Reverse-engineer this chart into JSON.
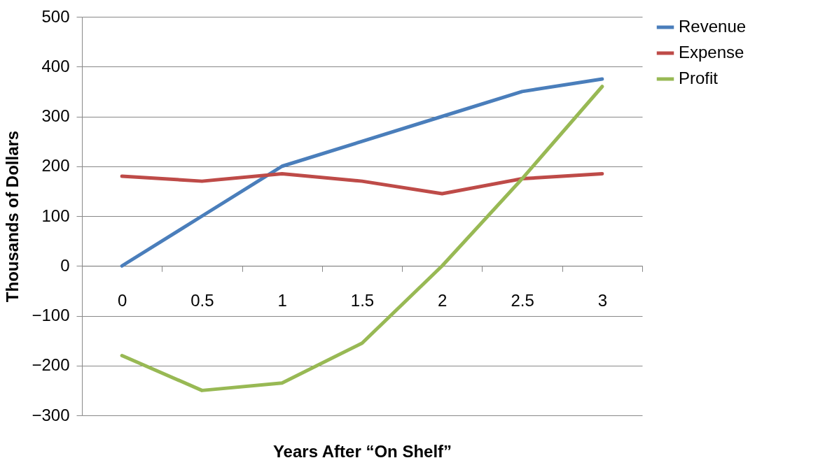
{
  "chart_data": {
    "type": "line",
    "xlabel": "Years After “On Shelf”",
    "ylabel": "Thousands of Dollars",
    "categories": [
      "0",
      "0.5",
      "1",
      "1.5",
      "2",
      "2.5",
      "3"
    ],
    "series": [
      {
        "name": "Revenue",
        "color": "#4a7ebb",
        "values": [
          0,
          100,
          200,
          250,
          300,
          350,
          375
        ]
      },
      {
        "name": "Expense",
        "color": "#be4b48",
        "values": [
          180,
          170,
          185,
          170,
          145,
          175,
          185
        ]
      },
      {
        "name": "Profit",
        "color": "#98b954",
        "values": [
          -180,
          -250,
          -235,
          -155,
          0,
          175,
          360
        ]
      }
    ],
    "ylim": [
      -300,
      500
    ],
    "yticks": [
      -300,
      -200,
      -100,
      0,
      100,
      200,
      300,
      400,
      500
    ],
    "grid": "y",
    "legend": "right",
    "marker": "none",
    "line_style": "solid"
  }
}
